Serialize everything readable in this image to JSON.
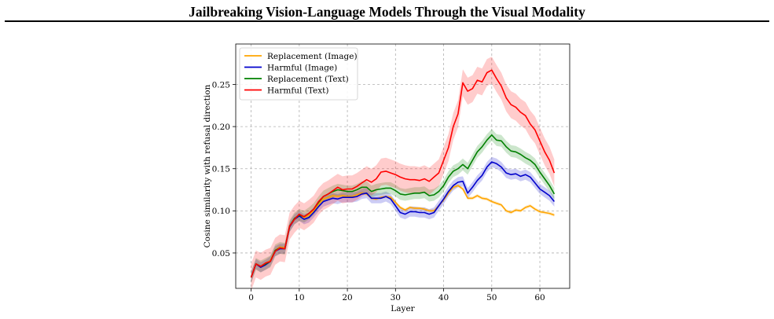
{
  "header": {
    "running_title": "Jailbreaking Vision-Language Models Through the Visual Modality"
  },
  "chart_data": {
    "type": "line",
    "title": "",
    "xlabel": "Layer",
    "ylabel": "Cosine similarity with refusal direction",
    "xlim": [
      -3.2,
      66.2
    ],
    "ylim": [
      0.008,
      0.298
    ],
    "xticks": [
      0,
      10,
      20,
      30,
      40,
      50,
      60
    ],
    "yticks": [
      0.05,
      0.1,
      0.15,
      0.2,
      0.25
    ],
    "ytick_labels": [
      "0.05",
      "0.10",
      "0.15",
      "0.20",
      "0.25"
    ],
    "grid": true,
    "legend_position": "top-left",
    "x": [
      0,
      1,
      2,
      3,
      4,
      5,
      6,
      7,
      8,
      9,
      10,
      11,
      12,
      13,
      14,
      15,
      16,
      17,
      18,
      19,
      20,
      21,
      22,
      23,
      24,
      25,
      26,
      27,
      28,
      29,
      30,
      31,
      32,
      33,
      34,
      35,
      36,
      37,
      38,
      39,
      40,
      41,
      42,
      43,
      44,
      45,
      46,
      47,
      48,
      49,
      50,
      51,
      52,
      53,
      54,
      55,
      56,
      57,
      58,
      59,
      60,
      61,
      62,
      63
    ],
    "series": [
      {
        "name": "Replacement (Image)",
        "color": "#FFA500",
        "values": [
          0.021,
          0.037,
          0.034,
          0.037,
          0.041,
          0.053,
          0.057,
          0.056,
          0.081,
          0.09,
          0.094,
          0.092,
          0.095,
          0.1,
          0.108,
          0.114,
          0.116,
          0.118,
          0.117,
          0.118,
          0.117,
          0.117,
          0.119,
          0.121,
          0.12,
          0.115,
          0.114,
          0.116,
          0.117,
          0.116,
          0.11,
          0.104,
          0.101,
          0.104,
          0.103,
          0.103,
          0.102,
          0.1,
          0.1,
          0.106,
          0.113,
          0.121,
          0.128,
          0.13,
          0.126,
          0.115,
          0.115,
          0.118,
          0.115,
          0.114,
          0.111,
          0.109,
          0.107,
          0.1,
          0.098,
          0.101,
          0.1,
          0.104,
          0.106,
          0.102,
          0.099,
          0.098,
          0.097,
          0.095
        ],
        "band": 0.002
      },
      {
        "name": "Harmful (Image)",
        "color": "#0000CC",
        "values": [
          0.021,
          0.037,
          0.033,
          0.036,
          0.04,
          0.052,
          0.055,
          0.055,
          0.081,
          0.09,
          0.094,
          0.09,
          0.092,
          0.098,
          0.105,
          0.111,
          0.113,
          0.115,
          0.114,
          0.116,
          0.116,
          0.116,
          0.117,
          0.12,
          0.121,
          0.115,
          0.115,
          0.115,
          0.117,
          0.114,
          0.106,
          0.098,
          0.096,
          0.099,
          0.099,
          0.098,
          0.098,
          0.096,
          0.098,
          0.106,
          0.114,
          0.123,
          0.13,
          0.134,
          0.135,
          0.121,
          0.128,
          0.136,
          0.142,
          0.152,
          0.158,
          0.156,
          0.152,
          0.145,
          0.143,
          0.144,
          0.141,
          0.143,
          0.14,
          0.133,
          0.126,
          0.122,
          0.118,
          0.111
        ],
        "band": 0.006
      },
      {
        "name": "Replacement (Text)",
        "color": "#008000",
        "values": [
          0.021,
          0.037,
          0.034,
          0.037,
          0.04,
          0.053,
          0.056,
          0.055,
          0.082,
          0.091,
          0.095,
          0.093,
          0.097,
          0.102,
          0.11,
          0.117,
          0.12,
          0.123,
          0.125,
          0.124,
          0.123,
          0.123,
          0.125,
          0.128,
          0.128,
          0.123,
          0.125,
          0.126,
          0.127,
          0.127,
          0.124,
          0.12,
          0.119,
          0.12,
          0.121,
          0.121,
          0.122,
          0.118,
          0.119,
          0.123,
          0.13,
          0.14,
          0.147,
          0.15,
          0.155,
          0.15,
          0.16,
          0.17,
          0.176,
          0.184,
          0.19,
          0.184,
          0.183,
          0.176,
          0.171,
          0.17,
          0.167,
          0.163,
          0.16,
          0.155,
          0.146,
          0.138,
          0.13,
          0.12
        ],
        "band": 0.007
      },
      {
        "name": "Harmful (Text)",
        "color": "#FF0000",
        "values": [
          0.021,
          0.037,
          0.034,
          0.038,
          0.04,
          0.052,
          0.056,
          0.055,
          0.082,
          0.09,
          0.096,
          0.093,
          0.097,
          0.102,
          0.111,
          0.117,
          0.12,
          0.124,
          0.128,
          0.125,
          0.126,
          0.126,
          0.129,
          0.133,
          0.137,
          0.134,
          0.138,
          0.146,
          0.147,
          0.145,
          0.143,
          0.14,
          0.138,
          0.137,
          0.137,
          0.136,
          0.138,
          0.135,
          0.14,
          0.145,
          0.16,
          0.175,
          0.2,
          0.215,
          0.252,
          0.242,
          0.245,
          0.255,
          0.253,
          0.264,
          0.267,
          0.257,
          0.248,
          0.234,
          0.226,
          0.223,
          0.217,
          0.213,
          0.203,
          0.196,
          0.183,
          0.17,
          0.16,
          0.145
        ],
        "band": 0.016
      }
    ]
  }
}
